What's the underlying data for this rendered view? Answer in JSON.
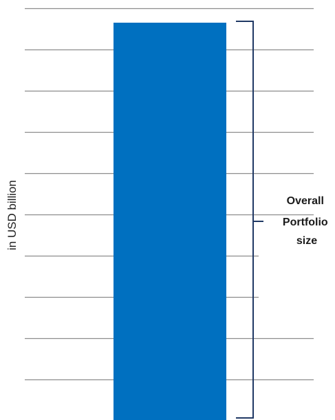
{
  "chart_data": {
    "type": "bar",
    "categories": [
      ""
    ],
    "values": [
      100
    ],
    "ylabel": "in USD billion",
    "ylim": [
      0,
      100
    ],
    "grid": true,
    "gridline_count": 10,
    "tick_labels_shown": false,
    "bar_color": "#0070c0",
    "gridline_color": "#8c8c8c",
    "bracket_color": "#1f3864",
    "annotation": {
      "lines": [
        "Overall",
        "Portfolio",
        "size"
      ]
    }
  }
}
